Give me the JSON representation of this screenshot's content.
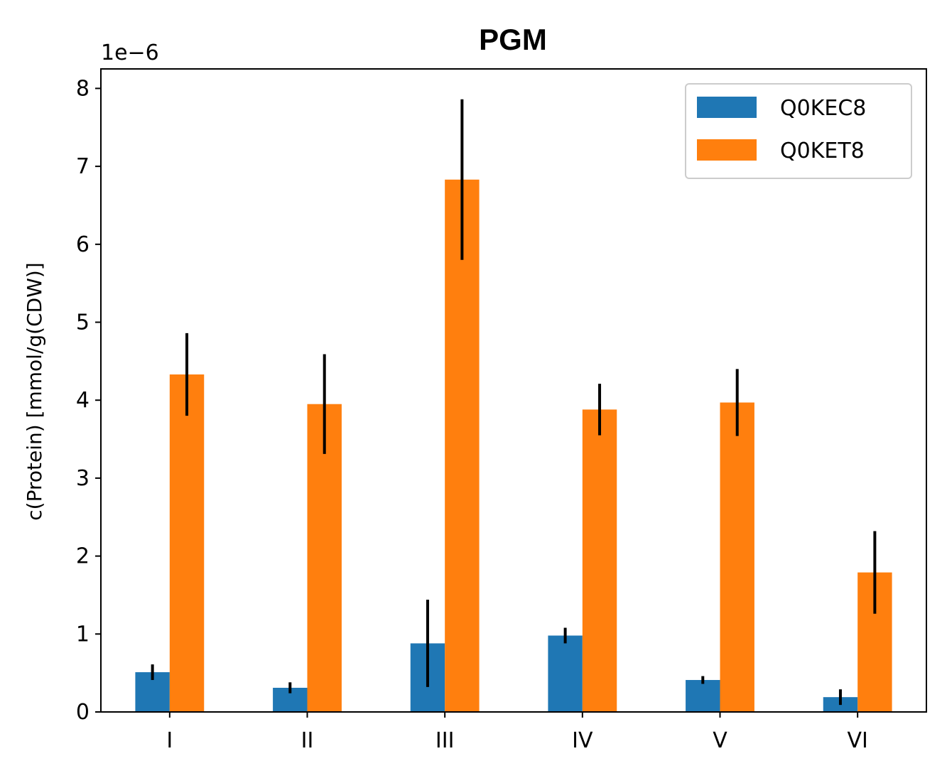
{
  "chart_data": {
    "type": "bar",
    "title": "PGM",
    "xlabel": "",
    "ylabel": "c(Protein) [mmol/g(CDW)]",
    "y_offset_label": "1e−6",
    "y_scale": 1e-06,
    "ylim": [
      0,
      8.25
    ],
    "yticks": [
      0,
      1,
      2,
      3,
      4,
      5,
      6,
      7,
      8
    ],
    "categories": [
      "I",
      "II",
      "III",
      "IV",
      "V",
      "VI"
    ],
    "legend_position": "top-right",
    "grid": false,
    "series": [
      {
        "name": "Q0KEC8",
        "color": "#1f77b4",
        "values": [
          0.51,
          0.31,
          0.88,
          0.98,
          0.41,
          0.19
        ],
        "errors": [
          0.1,
          0.07,
          0.56,
          0.1,
          0.05,
          0.1
        ]
      },
      {
        "name": "Q0KET8",
        "color": "#ff7f0e",
        "values": [
          4.33,
          3.95,
          6.83,
          3.88,
          3.97,
          1.79
        ],
        "errors": [
          0.53,
          0.64,
          1.03,
          0.33,
          0.43,
          0.53
        ]
      }
    ]
  }
}
